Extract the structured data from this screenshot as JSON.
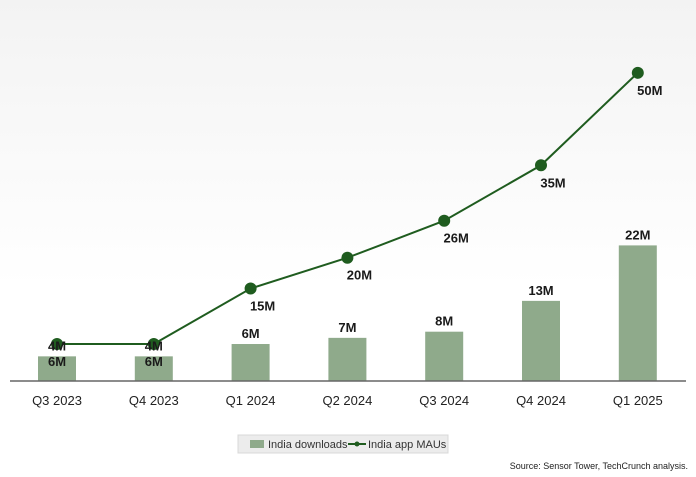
{
  "chart_data": {
    "type": "bar",
    "categories": [
      "Q3 2023",
      "Q4 2023",
      "Q1 2024",
      "Q2 2024",
      "Q3 2024",
      "Q4 2024",
      "Q1 2025"
    ],
    "series": [
      {
        "name": "India downloads",
        "type": "bar",
        "values": [
          4,
          4,
          6,
          7,
          8,
          13,
          22
        ],
        "labels": [
          "4M",
          "4M",
          "6M",
          "7M",
          "8M",
          "13M",
          "22M"
        ],
        "color": "#8faa8b"
      },
      {
        "name": "India app MAUs",
        "type": "line",
        "values": [
          6,
          6,
          15,
          20,
          26,
          35,
          50
        ],
        "labels": [
          "6M",
          "6M",
          "15M",
          "20M",
          "26M",
          "35M",
          "50M"
        ],
        "color": "#1f5c1f"
      }
    ],
    "ylim": [
      0,
      55
    ],
    "grid": false,
    "legend": "bottom-center",
    "source": "Source: Sensor Tower, TechCrunch analysis."
  }
}
